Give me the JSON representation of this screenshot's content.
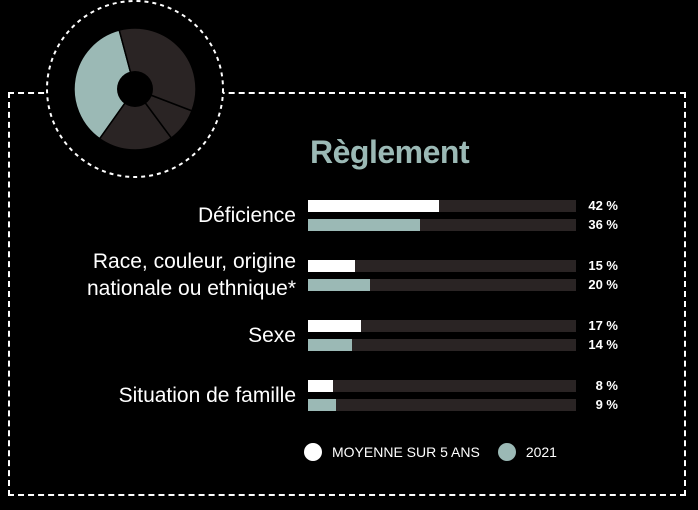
{
  "colors": {
    "background": "#000000",
    "avg_bar": "#ffffff",
    "year_bar": "#9bb9b5",
    "track": "#2a2424",
    "donut_dark": "#2a2424",
    "donut_teal": "#9bb9b5"
  },
  "chart_data": {
    "type": "bar",
    "orientation": "horizontal",
    "title": "Règlement",
    "categories": [
      [
        "Déficience"
      ],
      [
        "Race, couleur, origine",
        "nationale ou ethnique*"
      ],
      [
        "Sexe"
      ],
      [
        "Situation de famille"
      ]
    ],
    "series": [
      {
        "name": "MOYENNE SUR 5 ANS",
        "values": [
          42,
          15,
          17,
          8
        ],
        "value_labels": [
          "42 %",
          "15 %",
          "17 %",
          "8 %"
        ]
      },
      {
        "name": "2021",
        "values": [
          36,
          20,
          14,
          9
        ],
        "value_labels": [
          "36 %",
          "20 %",
          "14 %",
          "9 %"
        ]
      }
    ],
    "xlim": [
      0,
      100
    ],
    "legend_position": "bottom",
    "grid": false
  },
  "donut": {
    "slices": [
      {
        "value": 36,
        "color": "#9bb9b5"
      },
      {
        "value": 20,
        "color": "#2a2424"
      },
      {
        "value": 9,
        "color": "#2a2424"
      },
      {
        "value": 35,
        "color": "#2a2424"
      }
    ]
  }
}
